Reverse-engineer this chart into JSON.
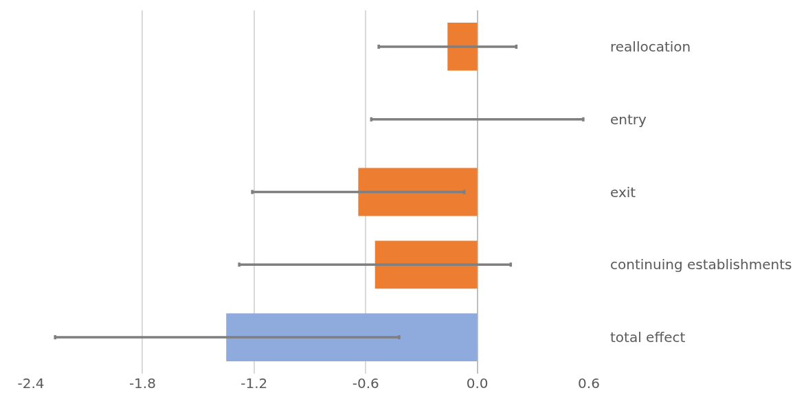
{
  "chart_data": {
    "type": "bar",
    "orientation": "horizontal",
    "categories": [
      "reallocation",
      "entry",
      "exit",
      "continuing establishments",
      "total effect"
    ],
    "values": [
      -0.16,
      0,
      -0.64,
      -0.55,
      -1.35
    ],
    "colors": [
      "#ed7d31",
      "#ed7d31",
      "#ed7d31",
      "#ed7d31",
      "#8faadc"
    ],
    "errors": [
      [
        -0.53,
        0.21
      ],
      [
        -0.57,
        0.57
      ],
      [
        -1.21,
        -0.07
      ],
      [
        -1.28,
        0.18
      ],
      [
        -2.27,
        -0.42
      ]
    ],
    "xlim": [
      -2.4,
      0.6
    ],
    "xticks": [
      {
        "value": -2.4,
        "label": "-2.4"
      },
      {
        "value": -1.8,
        "label": "-1.8"
      },
      {
        "value": -1.2,
        "label": "-1.2"
      },
      {
        "value": -0.6,
        "label": "-0.6"
      },
      {
        "value": 0,
        "label": "0.0"
      },
      {
        "value": 0.6,
        "label": "0.6"
      }
    ],
    "grid": "x"
  }
}
